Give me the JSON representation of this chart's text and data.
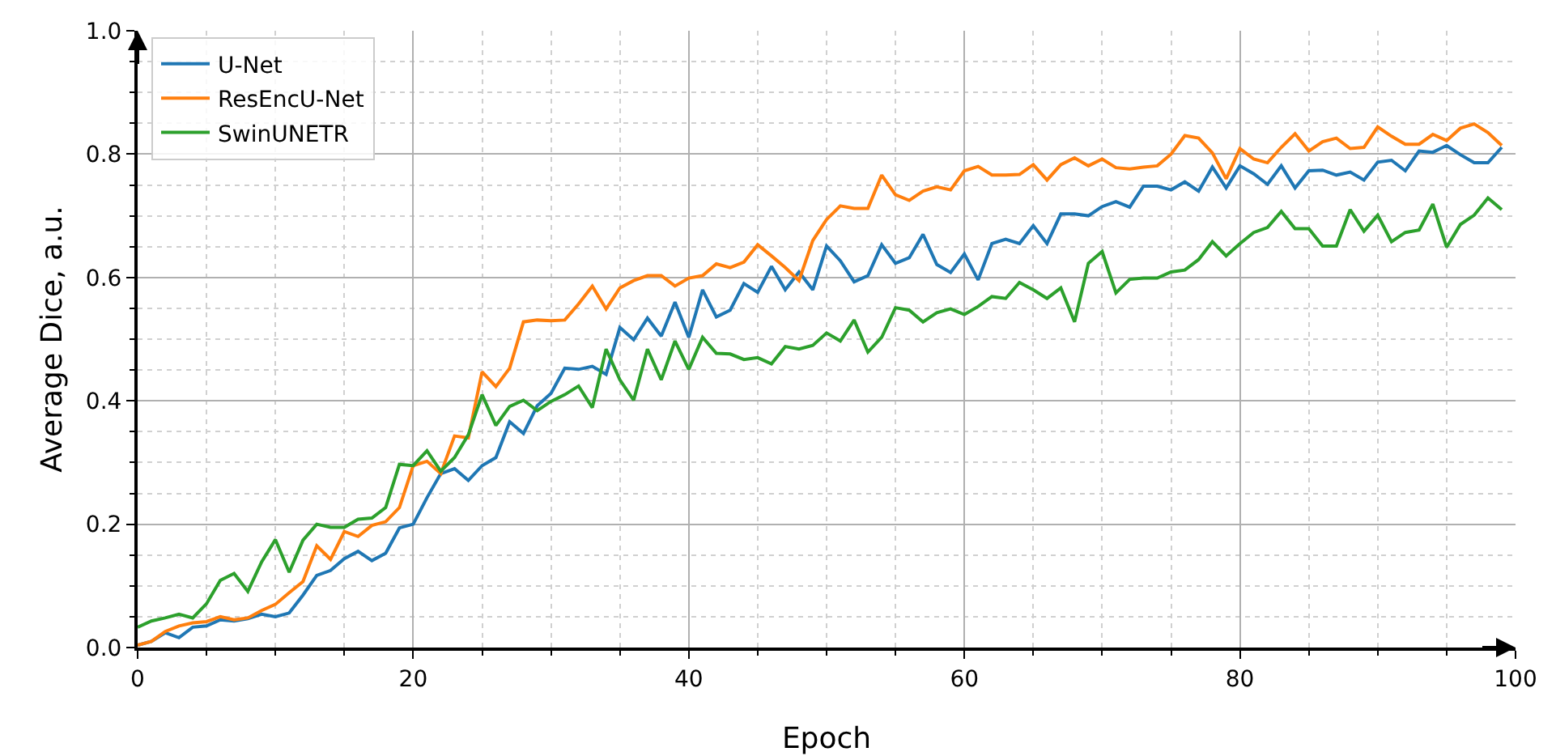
{
  "chart_data": {
    "type": "line",
    "xlabel": "Epoch",
    "ylabel": "Average Dice, a.u.",
    "x": [
      0,
      1,
      2,
      3,
      4,
      5,
      6,
      7,
      8,
      9,
      10,
      11,
      12,
      13,
      14,
      15,
      16,
      17,
      18,
      19,
      20,
      21,
      22,
      23,
      24,
      25,
      26,
      27,
      28,
      29,
      30,
      31,
      32,
      33,
      34,
      35,
      36,
      37,
      38,
      39,
      40,
      41,
      42,
      43,
      44,
      45,
      46,
      47,
      48,
      49,
      50,
      51,
      52,
      53,
      54,
      55,
      56,
      57,
      58,
      59,
      60,
      61,
      62,
      63,
      64,
      65,
      66,
      67,
      68,
      69,
      70,
      71,
      72,
      73,
      74,
      75,
      76,
      77,
      78,
      79,
      80,
      81,
      82,
      83,
      84,
      85,
      86,
      87,
      88,
      89,
      90,
      91,
      92,
      93,
      94,
      95,
      96,
      97,
      98,
      99
    ],
    "series": [
      {
        "name": "U-Net",
        "color": "#1f77b4",
        "values": [
          0.004,
          0.01,
          0.024,
          0.016,
          0.033,
          0.035,
          0.045,
          0.043,
          0.047,
          0.054,
          0.05,
          0.056,
          0.085,
          0.117,
          0.125,
          0.144,
          0.156,
          0.141,
          0.153,
          0.194,
          0.2,
          0.243,
          0.282,
          0.29,
          0.271,
          0.295,
          0.308,
          0.366,
          0.347,
          0.392,
          0.412,
          0.453,
          0.451,
          0.456,
          0.443,
          0.519,
          0.499,
          0.534,
          0.505,
          0.56,
          0.503,
          0.58,
          0.536,
          0.547,
          0.59,
          0.576,
          0.618,
          0.58,
          0.609,
          0.58,
          0.651,
          0.627,
          0.593,
          0.603,
          0.653,
          0.623,
          0.632,
          0.67,
          0.621,
          0.608,
          0.638,
          0.596,
          0.655,
          0.662,
          0.655,
          0.684,
          0.655,
          0.703,
          0.703,
          0.7,
          0.715,
          0.723,
          0.714,
          0.748,
          0.748,
          0.742,
          0.755,
          0.74,
          0.779,
          0.745,
          0.781,
          0.768,
          0.751,
          0.781,
          0.745,
          0.773,
          0.774,
          0.766,
          0.771,
          0.758,
          0.787,
          0.79,
          0.773,
          0.805,
          0.803,
          0.814,
          0.799,
          0.786,
          0.786,
          0.811
        ]
      },
      {
        "name": "ResEncU-Net",
        "color": "#ff7f0e",
        "values": [
          0.004,
          0.01,
          0.026,
          0.035,
          0.04,
          0.042,
          0.05,
          0.045,
          0.048,
          0.06,
          0.07,
          0.089,
          0.107,
          0.165,
          0.143,
          0.188,
          0.18,
          0.198,
          0.204,
          0.227,
          0.295,
          0.302,
          0.282,
          0.343,
          0.34,
          0.447,
          0.423,
          0.453,
          0.528,
          0.531,
          0.53,
          0.531,
          0.557,
          0.586,
          0.549,
          0.583,
          0.595,
          0.603,
          0.603,
          0.586,
          0.599,
          0.603,
          0.622,
          0.616,
          0.625,
          0.653,
          0.635,
          0.616,
          0.595,
          0.66,
          0.694,
          0.716,
          0.712,
          0.712,
          0.766,
          0.734,
          0.725,
          0.74,
          0.747,
          0.742,
          0.773,
          0.78,
          0.766,
          0.766,
          0.767,
          0.783,
          0.758,
          0.783,
          0.794,
          0.781,
          0.792,
          0.778,
          0.776,
          0.779,
          0.781,
          0.8,
          0.83,
          0.826,
          0.802,
          0.76,
          0.809,
          0.792,
          0.786,
          0.811,
          0.833,
          0.805,
          0.82,
          0.826,
          0.809,
          0.811,
          0.844,
          0.829,
          0.816,
          0.816,
          0.832,
          0.822,
          0.842,
          0.849,
          0.835,
          0.814
        ]
      },
      {
        "name": "SwinUNETR",
        "color": "#2ca02c",
        "values": [
          0.033,
          0.043,
          0.048,
          0.054,
          0.048,
          0.071,
          0.109,
          0.12,
          0.091,
          0.139,
          0.175,
          0.122,
          0.174,
          0.2,
          0.195,
          0.195,
          0.208,
          0.21,
          0.227,
          0.297,
          0.295,
          0.319,
          0.286,
          0.308,
          0.345,
          0.41,
          0.36,
          0.391,
          0.401,
          0.384,
          0.399,
          0.41,
          0.424,
          0.389,
          0.484,
          0.434,
          0.401,
          0.484,
          0.434,
          0.497,
          0.451,
          0.503,
          0.477,
          0.476,
          0.467,
          0.47,
          0.46,
          0.488,
          0.484,
          0.49,
          0.51,
          0.497,
          0.531,
          0.479,
          0.503,
          0.551,
          0.547,
          0.528,
          0.543,
          0.549,
          0.54,
          0.553,
          0.569,
          0.566,
          0.592,
          0.58,
          0.566,
          0.583,
          0.528,
          0.623,
          0.642,
          0.575,
          0.597,
          0.599,
          0.599,
          0.609,
          0.612,
          0.629,
          0.658,
          0.635,
          0.655,
          0.673,
          0.681,
          0.707,
          0.679,
          0.679,
          0.651,
          0.651,
          0.71,
          0.675,
          0.701,
          0.658,
          0.673,
          0.677,
          0.719,
          0.649,
          0.686,
          0.701,
          0.729,
          0.71
        ]
      }
    ],
    "xlim": [
      0,
      100
    ],
    "xticks": [
      0,
      20,
      40,
      60,
      80,
      100
    ],
    "ylim": [
      0,
      1
    ],
    "yticks": [
      {
        "value": 0,
        "label": "0.0"
      },
      {
        "value": 0.2,
        "label": "0.2"
      },
      {
        "value": 0.4,
        "label": "0.4"
      },
      {
        "value": 0.6,
        "label": "0.6"
      },
      {
        "value": 0.8,
        "label": "0.8"
      },
      {
        "value": 1,
        "label": "1.0"
      }
    ],
    "grid": true,
    "legend": "top left",
    "marker": "none",
    "line_style": "solid"
  }
}
